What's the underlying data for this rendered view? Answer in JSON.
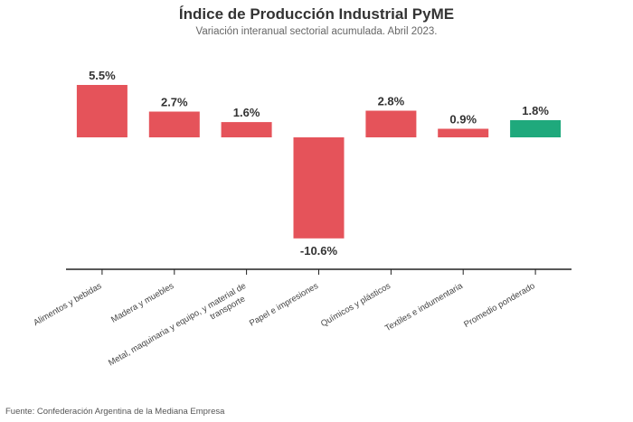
{
  "chart_data": {
    "type": "bar",
    "title": "Índice de Producción Industrial PyME",
    "subtitle": "Variación interanual sectorial acumulada. Abril 2023.",
    "categories": [
      [
        "Alimentos y bebidas"
      ],
      [
        "Madera y muebles"
      ],
      [
        "Metal, maquinaria y equipo, y material de",
        "transporte"
      ],
      [
        "Papel e impresiones"
      ],
      [
        "Químicos y plásticos"
      ],
      [
        "Textiles e indumentaria"
      ],
      [
        "Promedio ponderado"
      ]
    ],
    "values": [
      5.5,
      2.7,
      1.6,
      -10.6,
      2.8,
      0.9,
      1.8
    ],
    "value_labels": [
      "5.5%",
      "2.7%",
      "1.6%",
      "-10.6%",
      "2.8%",
      "0.9%",
      "1.8%"
    ],
    "bar_colors": [
      "#e5535a",
      "#e5535a",
      "#e5535a",
      "#e5535a",
      "#e5535a",
      "#e5535a",
      "#1fa97c"
    ],
    "ylim": [
      -10.6,
      5.5
    ],
    "grid": false,
    "source": "Fuente: Confederación Argentina de la Mediana Empresa"
  }
}
